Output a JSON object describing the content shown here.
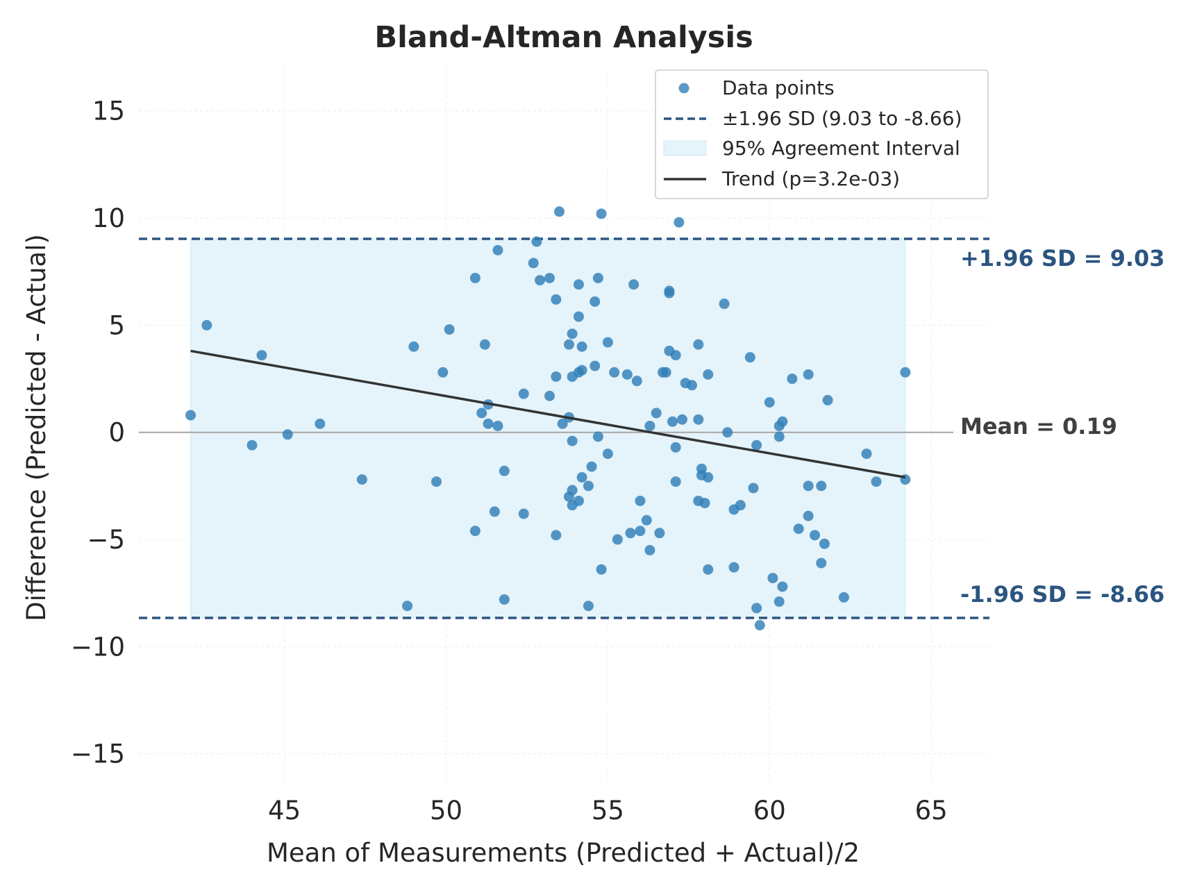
{
  "chart_data": {
    "type": "scatter",
    "title": "Bland-Altman Analysis",
    "xlabel": "Mean of Measurements (Predicted + Actual)/2",
    "ylabel": "Difference (Predicted - Actual)",
    "xlim": [
      40.5,
      66.8
    ],
    "ylim": [
      -16.5,
      17
    ],
    "xticks": [
      45,
      50,
      55,
      60,
      65
    ],
    "yticks": [
      15,
      10,
      5,
      0,
      -5,
      -10,
      -15
    ],
    "ytick_labels": [
      "15",
      "10",
      "5",
      "0",
      "−5",
      "−10",
      "−15"
    ],
    "grid": true,
    "legend_position": "top-right",
    "legend": [
      {
        "label": "Data points",
        "kind": "marker"
      },
      {
        "label": "±1.96 SD (9.03 to -8.66)",
        "kind": "dashed"
      },
      {
        "label": "95% Agreement Interval",
        "kind": "patch"
      },
      {
        "label": "Trend (p=3.2e-03)",
        "kind": "line"
      }
    ],
    "mean_diff": 0.19,
    "upper_loa": 9.03,
    "lower_loa": -8.66,
    "agreement_interval_x": [
      42.1,
      64.2
    ],
    "trend": {
      "x": [
        42.1,
        64.2
      ],
      "y": [
        3.8,
        -2.1
      ]
    },
    "annotations": {
      "upper": "+1.96 SD = 9.03",
      "mean": "Mean = 0.19",
      "lower": "-1.96 SD = -8.66"
    },
    "colors": {
      "points": "#2f7fb8",
      "loa_line": "#2b5580",
      "agreement_fill": "#e5f3fa",
      "trend": "#333333",
      "zero_line": "#a6a6a6",
      "grid": "#ececec"
    },
    "points": [
      [
        42.1,
        0.8
      ],
      [
        42.6,
        5.0
      ],
      [
        44.0,
        -0.6
      ],
      [
        44.3,
        3.6
      ],
      [
        45.1,
        -0.1
      ],
      [
        46.1,
        0.4
      ],
      [
        47.4,
        -2.2
      ],
      [
        48.8,
        -8.1
      ],
      [
        49.0,
        4.0
      ],
      [
        49.7,
        -2.3
      ],
      [
        49.9,
        2.8
      ],
      [
        50.1,
        4.8
      ],
      [
        50.9,
        -4.6
      ],
      [
        50.9,
        7.2
      ],
      [
        51.1,
        0.9
      ],
      [
        51.2,
        4.1
      ],
      [
        51.3,
        0.4
      ],
      [
        51.3,
        1.3
      ],
      [
        51.5,
        -3.7
      ],
      [
        51.6,
        0.3
      ],
      [
        51.6,
        8.5
      ],
      [
        51.8,
        -1.8
      ],
      [
        51.8,
        -7.8
      ],
      [
        52.4,
        1.8
      ],
      [
        52.4,
        -3.8
      ],
      [
        52.7,
        7.9
      ],
      [
        52.8,
        8.9
      ],
      [
        52.9,
        7.1
      ],
      [
        53.2,
        7.2
      ],
      [
        53.2,
        1.7
      ],
      [
        53.4,
        -4.8
      ],
      [
        53.4,
        6.2
      ],
      [
        53.4,
        2.6
      ],
      [
        53.5,
        10.3
      ],
      [
        53.6,
        0.4
      ],
      [
        53.8,
        0.7
      ],
      [
        53.8,
        4.1
      ],
      [
        53.9,
        2.6
      ],
      [
        53.9,
        4.6
      ],
      [
        53.9,
        -0.4
      ],
      [
        53.8,
        -3.0
      ],
      [
        53.9,
        -2.7
      ],
      [
        53.9,
        -3.4
      ],
      [
        54.1,
        5.4
      ],
      [
        54.1,
        6.9
      ],
      [
        54.1,
        -3.2
      ],
      [
        54.1,
        2.8
      ],
      [
        54.2,
        2.9
      ],
      [
        54.2,
        4.0
      ],
      [
        54.2,
        -2.1
      ],
      [
        54.4,
        -2.5
      ],
      [
        54.4,
        -8.1
      ],
      [
        54.5,
        -1.6
      ],
      [
        54.6,
        3.1
      ],
      [
        54.6,
        6.1
      ],
      [
        54.7,
        7.2
      ],
      [
        54.7,
        -0.2
      ],
      [
        54.8,
        -6.4
      ],
      [
        54.8,
        10.2
      ],
      [
        55.0,
        -1.0
      ],
      [
        55.0,
        4.2
      ],
      [
        55.2,
        2.8
      ],
      [
        55.3,
        -5.0
      ],
      [
        55.6,
        2.7
      ],
      [
        55.7,
        -4.7
      ],
      [
        55.8,
        6.9
      ],
      [
        55.9,
        2.4
      ],
      [
        56.0,
        -3.2
      ],
      [
        56.0,
        -4.6
      ],
      [
        56.2,
        -4.1
      ],
      [
        56.3,
        0.3
      ],
      [
        56.3,
        -5.5
      ],
      [
        56.5,
        0.9
      ],
      [
        56.6,
        -4.7
      ],
      [
        56.7,
        2.8
      ],
      [
        56.8,
        2.8
      ],
      [
        56.9,
        6.6
      ],
      [
        56.9,
        6.5
      ],
      [
        56.9,
        3.8
      ],
      [
        57.0,
        0.5
      ],
      [
        57.1,
        -0.7
      ],
      [
        57.1,
        3.6
      ],
      [
        57.1,
        -2.3
      ],
      [
        57.2,
        9.8
      ],
      [
        57.3,
        0.6
      ],
      [
        57.4,
        2.3
      ],
      [
        57.6,
        2.2
      ],
      [
        57.8,
        4.1
      ],
      [
        57.8,
        0.6
      ],
      [
        57.8,
        -3.2
      ],
      [
        57.9,
        -1.7
      ],
      [
        57.9,
        -2.0
      ],
      [
        58.1,
        -2.1
      ],
      [
        58.0,
        -3.3
      ],
      [
        58.1,
        -6.4
      ],
      [
        58.1,
        2.7
      ],
      [
        58.6,
        6.0
      ],
      [
        58.7,
        0.0
      ],
      [
        58.9,
        -3.6
      ],
      [
        58.9,
        -6.3
      ],
      [
        59.1,
        -3.4
      ],
      [
        59.4,
        3.5
      ],
      [
        59.5,
        -2.6
      ],
      [
        59.6,
        -0.6
      ],
      [
        59.6,
        -8.2
      ],
      [
        59.7,
        -9.0
      ],
      [
        60.0,
        1.4
      ],
      [
        60.1,
        -6.8
      ],
      [
        60.3,
        0.3
      ],
      [
        60.3,
        -0.2
      ],
      [
        60.3,
        -7.9
      ],
      [
        60.4,
        0.5
      ],
      [
        60.4,
        -7.2
      ],
      [
        60.7,
        2.5
      ],
      [
        60.9,
        -4.5
      ],
      [
        61.2,
        -2.5
      ],
      [
        61.2,
        2.7
      ],
      [
        61.2,
        -3.9
      ],
      [
        61.4,
        -4.8
      ],
      [
        61.6,
        -2.5
      ],
      [
        61.6,
        -6.1
      ],
      [
        61.7,
        -5.2
      ],
      [
        61.8,
        1.5
      ],
      [
        62.3,
        -7.7
      ],
      [
        63.0,
        -1.0
      ],
      [
        63.3,
        -2.3
      ],
      [
        64.2,
        2.8
      ],
      [
        64.2,
        -2.2
      ]
    ]
  }
}
